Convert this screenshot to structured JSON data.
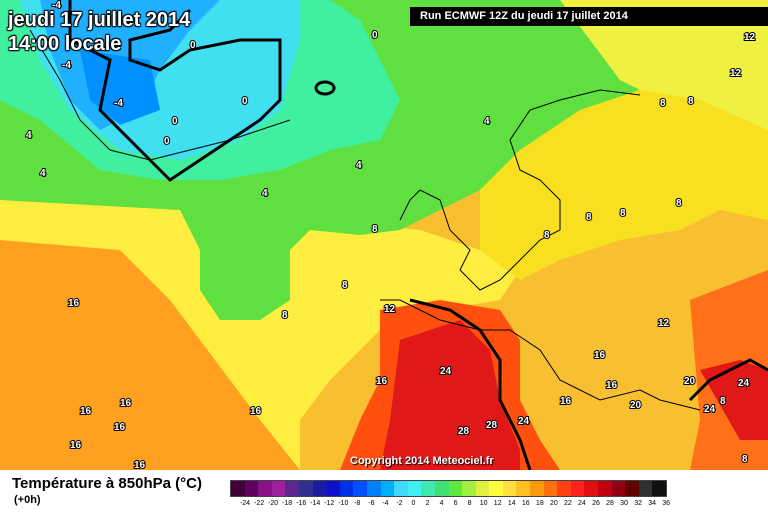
{
  "header": {
    "date_line": "jeudi 17 juillet 2014",
    "time_line": "14:00 locale",
    "run_banner": "Run ECMWF 12Z du jeudi 17 juillet 2014"
  },
  "map": {
    "copyright": "Copyright 2014 Meteociel.fr",
    "isotherm_labels": [
      "-4",
      "-4",
      "-4",
      "0",
      "0",
      "0",
      "0",
      "0",
      "4",
      "4",
      "4",
      "4",
      "4",
      "8",
      "8",
      "8",
      "8",
      "8",
      "8",
      "8",
      "8",
      "8",
      "12",
      "12",
      "12",
      "12",
      "16",
      "16",
      "16",
      "16",
      "16",
      "16",
      "16",
      "16",
      "16",
      "16",
      "16",
      "20",
      "20",
      "24",
      "24",
      "24",
      "28",
      "28",
      "24",
      "8",
      "8"
    ]
  },
  "legend": {
    "title": "Température à 850hPa (°C)",
    "subtitle": "(+0h)",
    "tick_labels": [
      "-24",
      "-22",
      "-20",
      "-18",
      "-16",
      "-14",
      "-12",
      "-10",
      "-8",
      "-6",
      "-4",
      "-2",
      "0",
      "2",
      "4",
      "6",
      "8",
      "10",
      "12",
      "14",
      "16",
      "18",
      "20",
      "22",
      "24",
      "26",
      "28",
      "30",
      "32",
      "34",
      "36"
    ],
    "colors": [
      "#400038",
      "#600060",
      "#8a108a",
      "#a020a0",
      "#5a2890",
      "#303090",
      "#1c1ca0",
      "#1010c8",
      "#0030e8",
      "#0050ff",
      "#0080ff",
      "#00b0ff",
      "#40d8ff",
      "#40f0f0",
      "#40e8b0",
      "#40e070",
      "#60e840",
      "#a0f040",
      "#e0f040",
      "#ffff40",
      "#ffe040",
      "#ffc020",
      "#ff9a10",
      "#ff7010",
      "#ff4010",
      "#ff2020",
      "#e01010",
      "#c00010",
      "#900010",
      "#600000",
      "#303030",
      "#101010"
    ]
  }
}
